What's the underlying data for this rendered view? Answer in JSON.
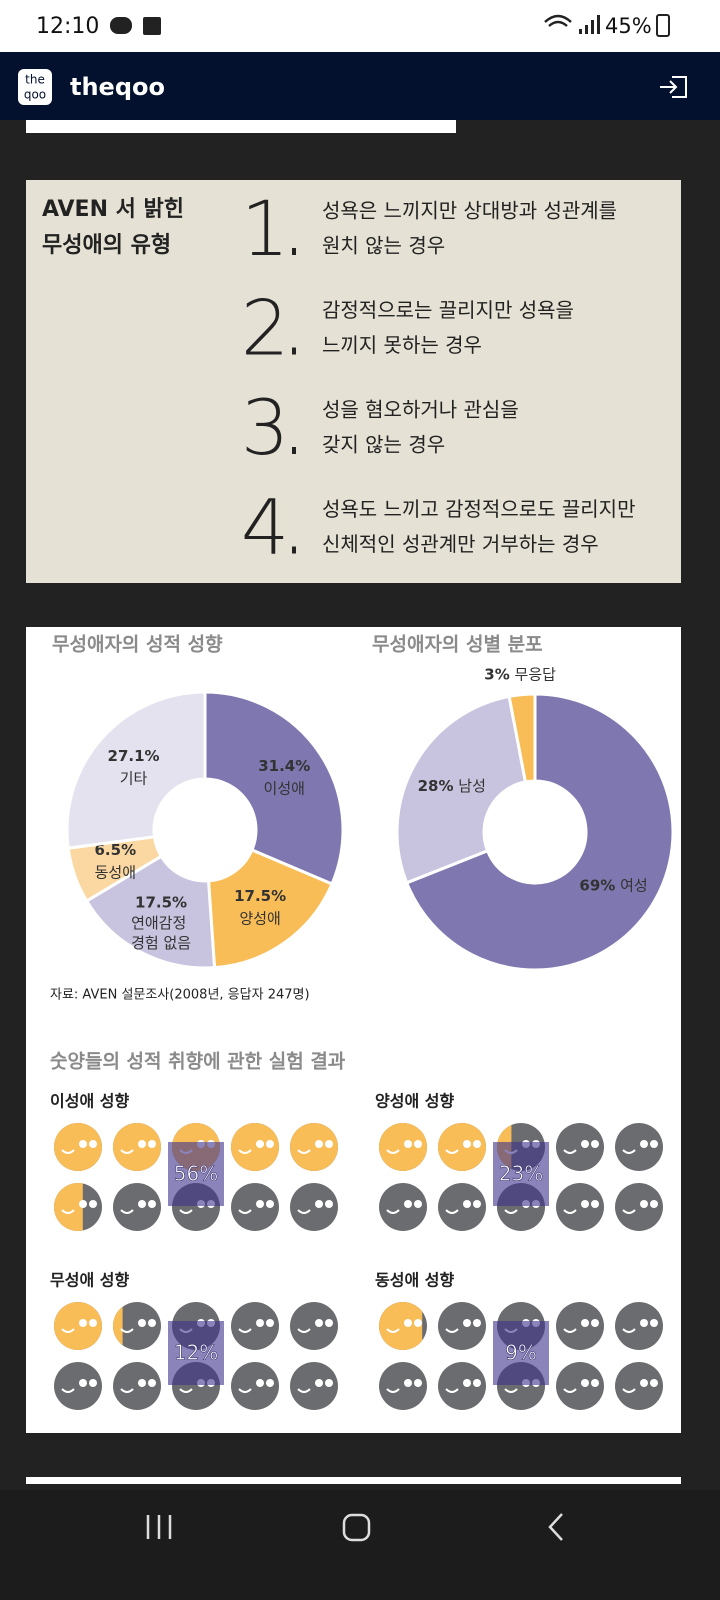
{
  "status_bar": {
    "time": "12:10",
    "battery": "45%"
  },
  "app_bar": {
    "logo_top": "the",
    "logo_bottom": "qoo",
    "title": "theqoo"
  },
  "types_card": {
    "title_lines": [
      "AVEN 서 밝힌",
      "무성애의 유형"
    ],
    "items": [
      {
        "number": "1",
        "lines": [
          "성욕은 느끼지만 상대방과 성관계를",
          "원치 않는 경우"
        ]
      },
      {
        "number": "2",
        "lines": [
          "감정적으로는 끌리지만 성욕을",
          "느끼지 못하는 경우"
        ]
      },
      {
        "number": "3",
        "lines": [
          "성을 혐오하거나 관심을",
          "갖지 않는 경우"
        ]
      },
      {
        "number": "4",
        "lines": [
          "성욕도 느끼고 감정적으로도 끌리지만",
          "신체적인 성관계만 거부하는 경우"
        ]
      }
    ]
  },
  "chart_data": [
    {
      "type": "pie",
      "title": "무성애자의 성적 성향",
      "categories": [
        "이성애",
        "양성애",
        "연애감정 경험 없음",
        "동성애",
        "기타"
      ],
      "values": [
        31.4,
        17.5,
        17.5,
        6.5,
        27.1
      ],
      "value_labels": [
        "31.4%",
        "17.5%",
        "17.5%",
        "6.5%",
        "27.1%"
      ],
      "colors": [
        "#7f78b0",
        "#f9bd57",
        "#c8c4df",
        "#fbd8a2",
        "#e4e2ef"
      ]
    },
    {
      "type": "pie",
      "title": "무성애자의 성별 분포",
      "categories": [
        "여성",
        "남성",
        "무응답"
      ],
      "values": [
        69,
        28,
        3
      ],
      "value_labels": [
        "69%",
        "28%",
        "3%"
      ],
      "colors": [
        "#7f78b0",
        "#c8c4df",
        "#f9bd57"
      ]
    }
  ],
  "source": "자료: AVEN 설문조사(2008년, 응답자 247명)",
  "experiment": {
    "title": "숫양들의 성적 취향에 관한 실험 결과",
    "panels": [
      {
        "label": "이성애 성향",
        "value": 56,
        "value_label": "56%"
      },
      {
        "label": "양성애 성향",
        "value": 23,
        "value_label": "23%"
      },
      {
        "label": "무성애 성향",
        "value": 12,
        "value_label": "12%"
      },
      {
        "label": "동성애 성향",
        "value": 9,
        "value_label": "9%"
      }
    ]
  }
}
